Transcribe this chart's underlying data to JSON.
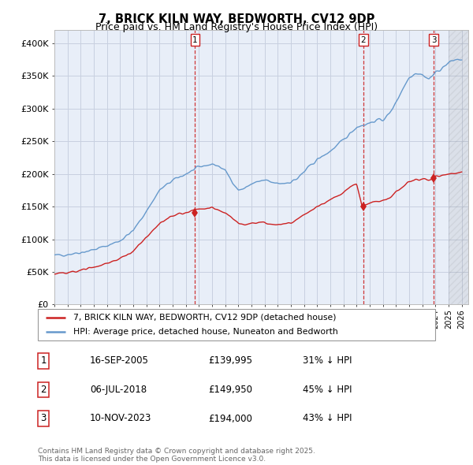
{
  "title": "7, BRICK KILN WAY, BEDWORTH, CV12 9DP",
  "subtitle": "Price paid vs. HM Land Registry's House Price Index (HPI)",
  "title_fontsize": 10.5,
  "subtitle_fontsize": 9,
  "hpi_color": "#6699cc",
  "price_color": "#cc2222",
  "dashed_color": "#cc2222",
  "bg_color": "#e8eef8",
  "grid_color": "#c8d0e0",
  "ylim": [
    0,
    420000
  ],
  "yticks": [
    0,
    50000,
    100000,
    150000,
    200000,
    250000,
    300000,
    350000,
    400000
  ],
  "ytick_labels": [
    "£0",
    "£50K",
    "£100K",
    "£150K",
    "£200K",
    "£250K",
    "£300K",
    "£350K",
    "£400K"
  ],
  "sale_dates": [
    2005.71,
    2018.51,
    2023.86
  ],
  "sale_prices": [
    139995,
    149950,
    194000
  ],
  "sale_labels": [
    "1",
    "2",
    "3"
  ],
  "legend_line1": "7, BRICK KILN WAY, BEDWORTH, CV12 9DP (detached house)",
  "legend_line2": "HPI: Average price, detached house, Nuneaton and Bedworth",
  "table_data": [
    [
      "1",
      "16-SEP-2005",
      "£139,995",
      "31% ↓ HPI"
    ],
    [
      "2",
      "06-JUL-2018",
      "£149,950",
      "45% ↓ HPI"
    ],
    [
      "3",
      "10-NOV-2023",
      "£194,000",
      "43% ↓ HPI"
    ]
  ],
  "footer": "Contains HM Land Registry data © Crown copyright and database right 2025.\nThis data is licensed under the Open Government Licence v3.0.",
  "hpi_keypoints": [
    [
      1995.0,
      75000
    ],
    [
      1996.0,
      77000
    ],
    [
      1997.0,
      80000
    ],
    [
      1998.0,
      84000
    ],
    [
      1999.0,
      90000
    ],
    [
      2000.0,
      98000
    ],
    [
      2001.0,
      113000
    ],
    [
      2002.0,
      143000
    ],
    [
      2003.0,
      175000
    ],
    [
      2004.0,
      190000
    ],
    [
      2005.0,
      200000
    ],
    [
      2005.5,
      205000
    ],
    [
      2006.0,
      210000
    ],
    [
      2006.5,
      213000
    ],
    [
      2007.0,
      215000
    ],
    [
      2007.5,
      212000
    ],
    [
      2008.0,
      205000
    ],
    [
      2008.5,
      190000
    ],
    [
      2009.0,
      175000
    ],
    [
      2009.5,
      178000
    ],
    [
      2010.0,
      185000
    ],
    [
      2010.5,
      188000
    ],
    [
      2011.0,
      190000
    ],
    [
      2011.5,
      187000
    ],
    [
      2012.0,
      185000
    ],
    [
      2012.5,
      186000
    ],
    [
      2013.0,
      188000
    ],
    [
      2013.5,
      193000
    ],
    [
      2014.0,
      203000
    ],
    [
      2014.5,
      213000
    ],
    [
      2015.0,
      222000
    ],
    [
      2015.5,
      228000
    ],
    [
      2016.0,
      235000
    ],
    [
      2016.5,
      243000
    ],
    [
      2017.0,
      252000
    ],
    [
      2017.5,
      262000
    ],
    [
      2018.0,
      272000
    ],
    [
      2018.5,
      275000
    ],
    [
      2019.0,
      278000
    ],
    [
      2019.5,
      282000
    ],
    [
      2020.0,
      283000
    ],
    [
      2020.5,
      292000
    ],
    [
      2021.0,
      310000
    ],
    [
      2021.5,
      330000
    ],
    [
      2022.0,
      348000
    ],
    [
      2022.5,
      355000
    ],
    [
      2023.0,
      352000
    ],
    [
      2023.5,
      345000
    ],
    [
      2024.0,
      355000
    ],
    [
      2024.5,
      362000
    ],
    [
      2025.0,
      370000
    ],
    [
      2025.5,
      375000
    ]
  ],
  "price_keypoints": [
    [
      1995.0,
      47000
    ],
    [
      1996.0,
      48500
    ],
    [
      1997.0,
      52000
    ],
    [
      1998.0,
      57000
    ],
    [
      1999.0,
      63000
    ],
    [
      2000.0,
      70000
    ],
    [
      2001.0,
      82000
    ],
    [
      2002.0,
      103000
    ],
    [
      2003.0,
      125000
    ],
    [
      2004.0,
      136000
    ],
    [
      2005.0,
      141000
    ],
    [
      2005.5,
      143000
    ],
    [
      2006.0,
      147000
    ],
    [
      2006.5,
      148000
    ],
    [
      2007.0,
      148000
    ],
    [
      2007.5,
      145000
    ],
    [
      2008.0,
      140000
    ],
    [
      2008.5,
      133000
    ],
    [
      2009.0,
      124000
    ],
    [
      2009.5,
      122000
    ],
    [
      2010.0,
      124000
    ],
    [
      2010.5,
      125000
    ],
    [
      2011.0,
      126000
    ],
    [
      2011.5,
      123000
    ],
    [
      2012.0,
      122000
    ],
    [
      2012.5,
      123000
    ],
    [
      2013.0,
      125000
    ],
    [
      2013.5,
      130000
    ],
    [
      2014.0,
      137000
    ],
    [
      2014.5,
      143000
    ],
    [
      2015.0,
      150000
    ],
    [
      2015.5,
      155000
    ],
    [
      2016.0,
      160000
    ],
    [
      2016.5,
      165000
    ],
    [
      2017.0,
      172000
    ],
    [
      2017.5,
      180000
    ],
    [
      2018.0,
      185000
    ],
    [
      2018.4,
      149950
    ],
    [
      2018.6,
      152000
    ],
    [
      2019.0,
      155000
    ],
    [
      2019.5,
      158000
    ],
    [
      2020.0,
      159000
    ],
    [
      2020.5,
      163000
    ],
    [
      2021.0,
      172000
    ],
    [
      2021.5,
      180000
    ],
    [
      2022.0,
      188000
    ],
    [
      2022.5,
      192000
    ],
    [
      2023.0,
      191000
    ],
    [
      2023.5,
      190000
    ],
    [
      2023.86,
      194000
    ],
    [
      2024.0,
      196000
    ],
    [
      2024.5,
      198000
    ],
    [
      2025.0,
      200000
    ],
    [
      2025.5,
      202000
    ]
  ]
}
